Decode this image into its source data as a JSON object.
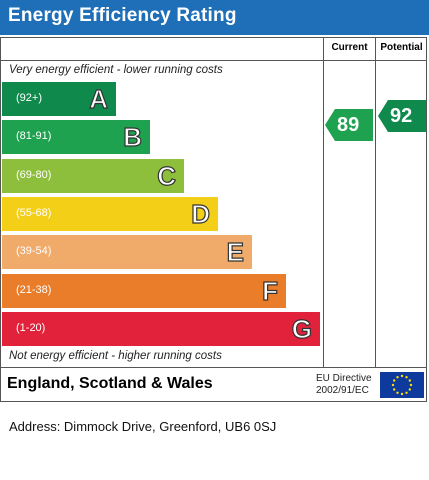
{
  "header": {
    "title": "Energy Efficiency Rating"
  },
  "columns": {
    "current": "Current",
    "potential": "Potential"
  },
  "notes": {
    "top": "Very energy efficient - lower running costs",
    "bottom": "Not energy efficient - higher running costs"
  },
  "footer": {
    "country": "England, Scotland & Wales",
    "eu_line1": "EU Directive",
    "eu_line2": "2002/91/EC"
  },
  "address": "Address: Dimmock Drive, Greenford, UB6 0SJ",
  "chart_data": {
    "type": "bar",
    "categories": [
      "A",
      "B",
      "C",
      "D",
      "E",
      "F",
      "G"
    ],
    "ranges": [
      "(92+)",
      "(81-91)",
      "(69-80)",
      "(55-68)",
      "(39-54)",
      "(21-38)",
      "(1-20)"
    ],
    "colors": [
      "#0f8a4c",
      "#1fa24f",
      "#8dbf3c",
      "#f4cf17",
      "#f0aa6a",
      "#ea7d2a",
      "#e2223a"
    ],
    "current": {
      "value": 89,
      "band": "B",
      "color": "#1fa24f"
    },
    "potential": {
      "value": 92,
      "band": "A",
      "color": "#0f8a4c"
    }
  }
}
